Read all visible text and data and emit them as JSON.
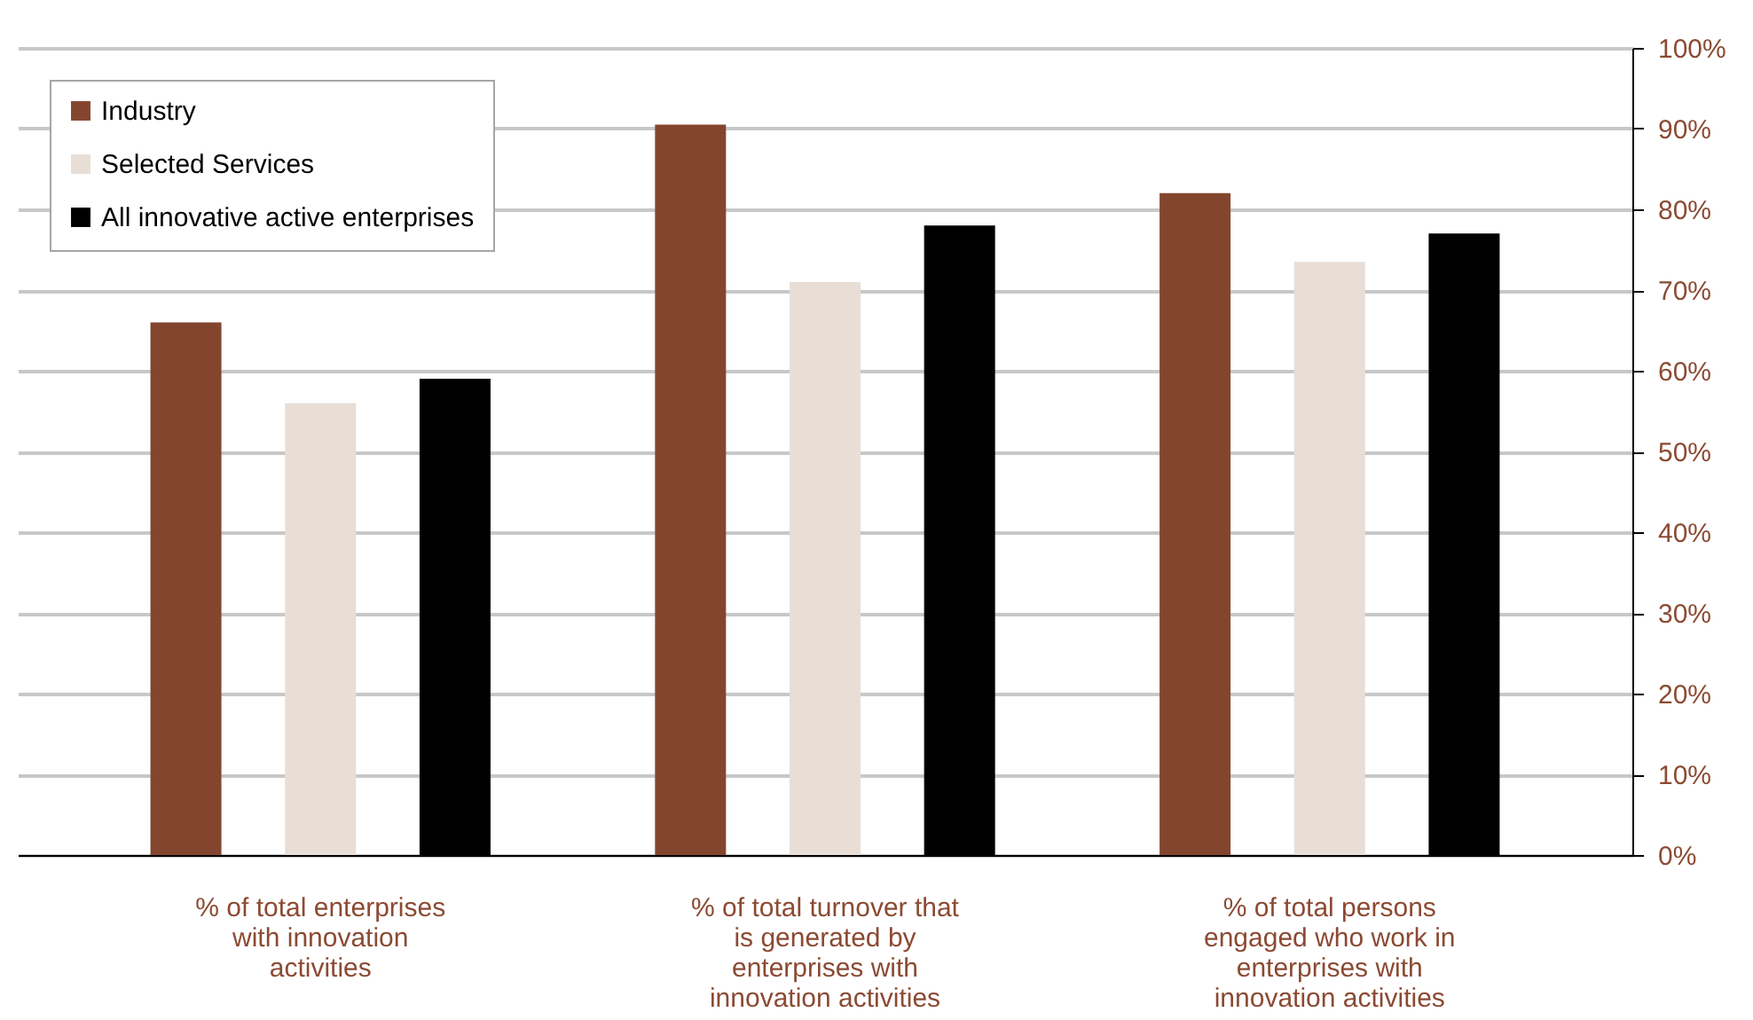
{
  "chart_data": {
    "type": "bar",
    "categories": [
      "% of total enterprises with innovation activities",
      "% of total turnover that is generated by enterprises with innovation activities",
      "% of total persons engaged who work in enterprises with innovation activities"
    ],
    "series": [
      {
        "name": "Industry",
        "color": "#84452f",
        "values": [
          66,
          90.5,
          82
        ]
      },
      {
        "name": "Selected Services",
        "color": "#e8ded6",
        "values": [
          56,
          71,
          73.5
        ]
      },
      {
        "name": "All innovative active enterprises",
        "color": "#000000",
        "values": [
          59,
          78,
          77
        ]
      }
    ],
    "ylim": [
      0,
      100
    ],
    "yticks": [
      {
        "value": 0,
        "label": "0%"
      },
      {
        "value": 10,
        "label": "10%"
      },
      {
        "value": 20,
        "label": "20%"
      },
      {
        "value": 30,
        "label": "30%"
      },
      {
        "value": 40,
        "label": "40%"
      },
      {
        "value": 50,
        "label": "50%"
      },
      {
        "value": 60,
        "label": "60%"
      },
      {
        "value": 70,
        "label": "70%"
      },
      {
        "value": 80,
        "label": "80%"
      },
      {
        "value": 90,
        "label": "90%"
      },
      {
        "value": 100,
        "label": "100%"
      }
    ],
    "grid": "y",
    "legend": "top left"
  }
}
